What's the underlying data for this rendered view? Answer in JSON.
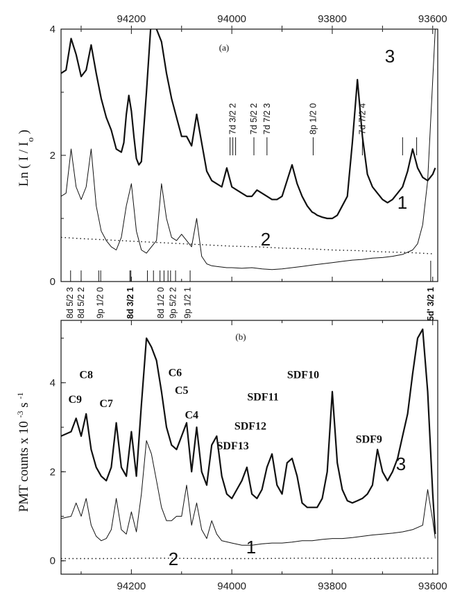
{
  "chart_data": [
    {
      "type": "line",
      "panel": "(a)",
      "ylabel": "Ln ( I / Io )",
      "xlim": [
        94340,
        93590
      ],
      "ylim": [
        0,
        4
      ],
      "yticks": [
        0,
        2,
        4
      ],
      "xticks_top": [
        94200,
        94000,
        93800,
        93600
      ],
      "curve_labels": [
        "1",
        "2",
        "3"
      ],
      "series": [
        {
          "name": "3",
          "x": [
            94340,
            94330,
            94320,
            94310,
            94300,
            94290,
            94280,
            94270,
            94260,
            94250,
            94240,
            94230,
            94220,
            94215,
            94210,
            94205,
            94200,
            94195,
            94190,
            94185,
            94180,
            94170,
            94160,
            94150,
            94140,
            94130,
            94120,
            94110,
            94100,
            94090,
            94080,
            94070,
            94060,
            94050,
            94040,
            94030,
            94020,
            94010,
            94000,
            93990,
            93980,
            93970,
            93960,
            93950,
            93940,
            93930,
            93920,
            93910,
            93900,
            93890,
            93880,
            93870,
            93860,
            93850,
            93845,
            93840,
            93835,
            93830,
            93820,
            93810,
            93800,
            93790,
            93780,
            93770,
            93760,
            93750,
            93740,
            93730,
            93720,
            93710,
            93700,
            93690,
            93680,
            93670,
            93660,
            93650,
            93640,
            93630,
            93620,
            93610,
            93600,
            93595
          ],
          "y": [
            3.3,
            3.35,
            3.85,
            3.6,
            3.25,
            3.35,
            3.75,
            3.3,
            2.9,
            2.6,
            2.4,
            2.1,
            2.05,
            2.2,
            2.65,
            2.95,
            2.7,
            2.3,
            1.95,
            1.85,
            1.9,
            3.0,
            4.2,
            4.0,
            3.8,
            3.3,
            2.9,
            2.6,
            2.3,
            2.3,
            2.15,
            2.65,
            2.2,
            1.75,
            1.6,
            1.55,
            1.5,
            1.8,
            1.5,
            1.45,
            1.4,
            1.35,
            1.35,
            1.45,
            1.4,
            1.35,
            1.3,
            1.3,
            1.35,
            1.6,
            1.85,
            1.55,
            1.35,
            1.2,
            1.15,
            1.1,
            1.08,
            1.05,
            1.02,
            1.0,
            1.0,
            1.05,
            1.2,
            1.35,
            2.2,
            3.2,
            2.3,
            1.7,
            1.5,
            1.4,
            1.3,
            1.25,
            1.3,
            1.4,
            1.5,
            1.75,
            2.1,
            1.8,
            1.65,
            1.6,
            1.7,
            1.8
          ]
        },
        {
          "name": "1",
          "x": [
            94340,
            94330,
            94320,
            94310,
            94300,
            94290,
            94280,
            94270,
            94260,
            94250,
            94240,
            94230,
            94220,
            94210,
            94200,
            94190,
            94180,
            94170,
            94160,
            94150,
            94140,
            94130,
            94120,
            94110,
            94100,
            94090,
            94080,
            94070,
            94060,
            94050,
            94040,
            94030,
            94020,
            94010,
            94000,
            93980,
            93960,
            93940,
            93920,
            93900,
            93880,
            93860,
            93840,
            93820,
            93800,
            93780,
            93760,
            93740,
            93720,
            93700,
            93680,
            93660,
            93640,
            93630,
            93620,
            93610,
            93600,
            93595
          ],
          "y": [
            1.35,
            1.4,
            2.1,
            1.5,
            1.3,
            1.5,
            2.1,
            1.2,
            0.8,
            0.65,
            0.55,
            0.5,
            0.7,
            1.2,
            1.55,
            0.8,
            0.5,
            0.45,
            0.55,
            0.65,
            1.55,
            1.0,
            0.7,
            0.65,
            0.75,
            0.65,
            0.55,
            1.0,
            0.4,
            0.28,
            0.25,
            0.24,
            0.23,
            0.22,
            0.22,
            0.21,
            0.22,
            0.2,
            0.19,
            0.2,
            0.22,
            0.24,
            0.26,
            0.28,
            0.3,
            0.32,
            0.34,
            0.35,
            0.37,
            0.38,
            0.4,
            0.43,
            0.5,
            0.6,
            0.9,
            1.6,
            3.2,
            4.0
          ]
        },
        {
          "name": "2",
          "style": "dotted",
          "x": [
            94340,
            94300,
            94250,
            94200,
            94150,
            94100,
            94050,
            94000,
            93950,
            93900,
            93850,
            93800,
            93750,
            93700,
            93650,
            93600
          ],
          "y": [
            0.7,
            0.68,
            0.66,
            0.64,
            0.62,
            0.6,
            0.58,
            0.56,
            0.55,
            0.53,
            0.52,
            0.5,
            0.49,
            0.47,
            0.46,
            0.44
          ]
        }
      ],
      "annotations_top": [
        {
          "label": "7d 3/2 2",
          "x": 93998
        },
        {
          "label": "7d 5/2 2",
          "x": 93956
        },
        {
          "label": "7d 7/2 3",
          "x": 93930
        },
        {
          "label": "8p 1/2 0",
          "x": 93838
        },
        {
          "label": "7d 7/2 4",
          "x": 93740
        }
      ],
      "annotations_bottom": [
        {
          "label": "8d 5/2 3",
          "x": 94322,
          "bold": false
        },
        {
          "label": "8d 5/2 2",
          "x": 94300,
          "bold": false
        },
        {
          "label": "9p 1/2 0",
          "x": 94262,
          "bold": false
        },
        {
          "label": "8d 3/2 1",
          "x": 94202,
          "bold": true
        },
        {
          "label": "8d 1/2 0",
          "x": 94141,
          "bold": false
        },
        {
          "label": "9p 5/2 2",
          "x": 94117,
          "bold": false
        },
        {
          "label": "9p 1/2 1",
          "x": 94088,
          "bold": false
        },
        {
          "label": "5d' 3/2 1",
          "x": 93604,
          "bold": true
        }
      ],
      "bottom_marks": [
        94321,
        94300,
        94265,
        94261,
        94203,
        94201,
        94168,
        94156,
        94143,
        94135,
        94127,
        94122,
        94112,
        94083
      ],
      "right_marks": [
        93660,
        93632
      ]
    },
    {
      "type": "line",
      "panel": "(b)",
      "ylabel": "PMT counts x 10-3 s-1",
      "xlim": [
        94340,
        93590
      ],
      "ylim": [
        -0.3,
        5.4
      ],
      "yticks": [
        0,
        2,
        4
      ],
      "xticks": [
        94200,
        94000,
        93800,
        93600
      ],
      "curve_labels": [
        "1",
        "2",
        "3"
      ],
      "series": [
        {
          "name": "3",
          "x": [
            94340,
            94320,
            94310,
            94300,
            94290,
            94280,
            94270,
            94260,
            94250,
            94240,
            94230,
            94220,
            94210,
            94200,
            94190,
            94180,
            94170,
            94160,
            94150,
            94140,
            94130,
            94120,
            94110,
            94100,
            94090,
            94080,
            94070,
            94060,
            94050,
            94040,
            94030,
            94020,
            94010,
            94000,
            93990,
            93980,
            93970,
            93960,
            93950,
            93940,
            93930,
            93920,
            93910,
            93900,
            93890,
            93880,
            93870,
            93860,
            93850,
            93840,
            93830,
            93820,
            93810,
            93800,
            93790,
            93780,
            93770,
            93760,
            93750,
            93740,
            93730,
            93720,
            93710,
            93700,
            93690,
            93680,
            93670,
            93660,
            93650,
            93640,
            93630,
            93620,
            93610,
            93600,
            93595
          ],
          "y": [
            2.8,
            2.9,
            3.2,
            2.8,
            3.3,
            2.5,
            2.1,
            1.9,
            1.8,
            2.1,
            3.1,
            2.1,
            1.9,
            2.9,
            1.9,
            3.5,
            5.0,
            4.8,
            4.5,
            3.8,
            3.0,
            2.6,
            2.5,
            2.8,
            3.1,
            2.0,
            3.0,
            2.0,
            1.7,
            2.6,
            2.8,
            1.9,
            1.5,
            1.4,
            1.6,
            1.8,
            2.1,
            1.5,
            1.4,
            1.6,
            2.1,
            2.4,
            1.7,
            1.5,
            2.2,
            2.3,
            1.9,
            1.3,
            1.2,
            1.2,
            1.2,
            1.4,
            2.0,
            3.8,
            2.2,
            1.6,
            1.35,
            1.3,
            1.35,
            1.4,
            1.5,
            1.7,
            2.5,
            2.0,
            1.8,
            2.0,
            2.3,
            2.8,
            3.3,
            4.2,
            5.0,
            5.2,
            3.8,
            1.5,
            0.6
          ]
        },
        {
          "name": "1",
          "x": [
            94340,
            94320,
            94310,
            94300,
            94290,
            94280,
            94270,
            94260,
            94250,
            94240,
            94230,
            94220,
            94210,
            94200,
            94190,
            94180,
            94170,
            94160,
            94150,
            94140,
            94130,
            94120,
            94110,
            94100,
            94090,
            94080,
            94070,
            94060,
            94050,
            94040,
            94030,
            94020,
            94000,
            93980,
            93960,
            93940,
            93920,
            93900,
            93880,
            93860,
            93840,
            93820,
            93800,
            93780,
            93760,
            93740,
            93720,
            93700,
            93680,
            93660,
            93640,
            93620,
            93610,
            93600,
            93595
          ],
          "y": [
            0.95,
            1.0,
            1.3,
            1.0,
            1.4,
            0.8,
            0.55,
            0.45,
            0.5,
            0.7,
            1.4,
            0.7,
            0.6,
            1.1,
            0.65,
            1.5,
            2.7,
            2.4,
            1.8,
            1.2,
            0.9,
            0.9,
            1.0,
            1.0,
            1.7,
            0.8,
            1.3,
            0.7,
            0.5,
            0.9,
            0.6,
            0.45,
            0.4,
            0.35,
            0.35,
            0.38,
            0.4,
            0.4,
            0.42,
            0.45,
            0.45,
            0.48,
            0.5,
            0.5,
            0.52,
            0.55,
            0.58,
            0.6,
            0.62,
            0.65,
            0.7,
            0.8,
            1.6,
            0.9,
            0.5
          ]
        },
        {
          "name": "2",
          "style": "dotted",
          "x": [
            94340,
            94250,
            94150,
            94050,
            93950,
            93850,
            93750,
            93650,
            93600
          ],
          "y": [
            0.05,
            0.05,
            0.06,
            0.05,
            0.05,
            0.06,
            0.05,
            0.06,
            0.06
          ]
        }
      ],
      "peak_labels": [
        {
          "label": "C9",
          "x": 94312,
          "y": 3.55
        },
        {
          "label": "C8",
          "x": 94290,
          "y": 4.1
        },
        {
          "label": "C7",
          "x": 94250,
          "y": 3.45
        },
        {
          "label": "C6",
          "x": 94113,
          "y": 4.15
        },
        {
          "label": "C5",
          "x": 94100,
          "y": 3.75
        },
        {
          "label": "C4",
          "x": 94080,
          "y": 3.2
        },
        {
          "label": "SDF13",
          "x": 93998,
          "y": 2.5
        },
        {
          "label": "SDF12",
          "x": 93963,
          "y": 2.95
        },
        {
          "label": "SDF11",
          "x": 93938,
          "y": 3.6
        },
        {
          "label": "SDF10",
          "x": 93858,
          "y": 4.1
        },
        {
          "label": "SDF9",
          "x": 93727,
          "y": 2.65
        }
      ]
    }
  ]
}
